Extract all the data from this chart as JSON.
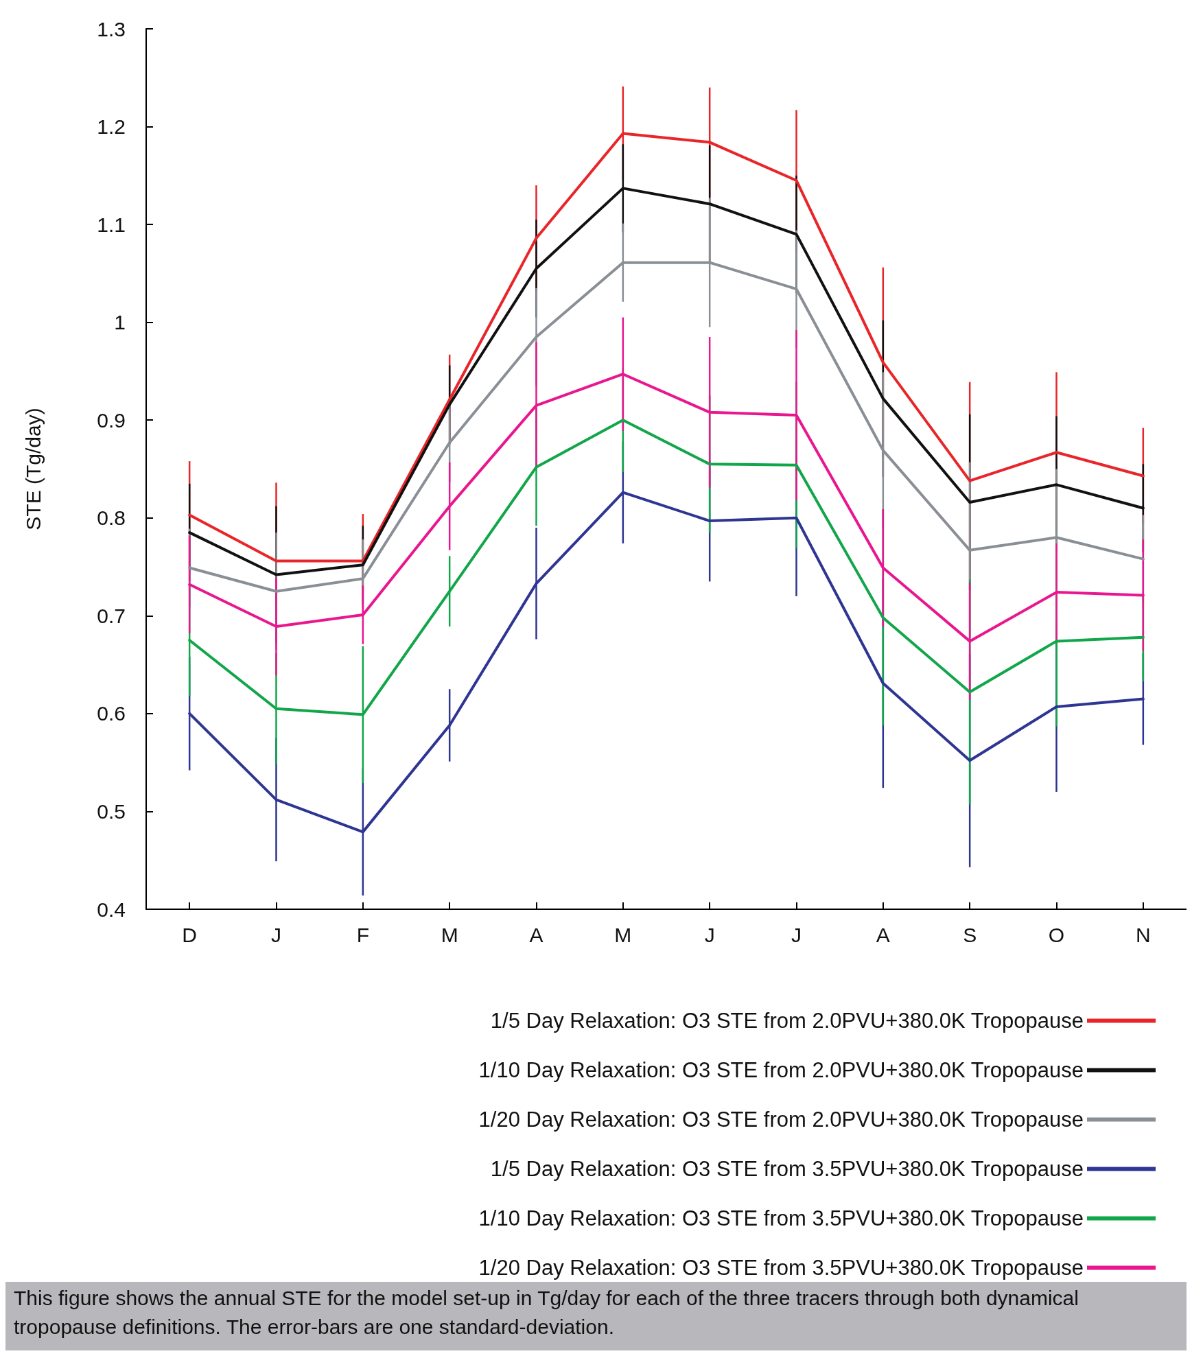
{
  "chart_data": {
    "type": "line",
    "ylabel": "STE (Tg/day)",
    "categories": [
      "D",
      "J",
      "F",
      "M",
      "A",
      "M",
      "J",
      "J",
      "A",
      "S",
      "O",
      "N"
    ],
    "ylim": [
      0.4,
      1.3
    ],
    "yticks": [
      0.4,
      0.5,
      0.6,
      0.7,
      0.8,
      0.9,
      1,
      1.1,
      1.2,
      1.3
    ],
    "grid": false,
    "legend": "bottom right",
    "marker": "none",
    "line_style": "solid",
    "series": [
      {
        "name": "1/5 Day Relaxation: O3 STE from 2.0PVU+380.0K Tropopause",
        "color": "#e8262a",
        "values": [
          0.803,
          0.756,
          0.756,
          0.921,
          1.086,
          1.193,
          1.184,
          1.145,
          0.959,
          0.838,
          0.867,
          0.843
        ],
        "errors": [
          0.055,
          0.08,
          0.048,
          0.046,
          0.054,
          0.048,
          0.056,
          0.072,
          0.097,
          0.101,
          0.082,
          0.049
        ]
      },
      {
        "name": "1/10 Day Relaxation: O3 STE from 2.0PVU+380.0K Tropopause",
        "color": "#111111",
        "values": [
          0.785,
          0.742,
          0.752,
          0.916,
          1.055,
          1.137,
          1.121,
          1.09,
          0.922,
          0.816,
          0.834,
          0.81
        ],
        "errors": [
          0.05,
          0.07,
          0.04,
          0.04,
          0.05,
          0.045,
          0.06,
          0.06,
          0.08,
          0.09,
          0.07,
          0.045
        ]
      },
      {
        "name": "1/20 Day Relaxation: O3 STE from 2.0PVU+380.0K Tropopause",
        "color": "#8a8f96",
        "values": [
          0.749,
          0.725,
          0.738,
          0.877,
          0.985,
          1.061,
          1.061,
          1.034,
          0.869,
          0.767,
          0.78,
          0.758
        ],
        "errors": [
          0.04,
          0.06,
          0.04,
          0.04,
          0.05,
          0.04,
          0.066,
          0.06,
          0.08,
          0.09,
          0.07,
          0.045
        ]
      },
      {
        "name": "1/5 Day Relaxation: O3 STE from 3.5PVU+380.0K Tropopause",
        "color": "#2e3592",
        "values": [
          0.6,
          0.512,
          0.479,
          0.588,
          0.733,
          0.826,
          0.797,
          0.8,
          0.631,
          0.552,
          0.607,
          0.615
        ],
        "errors": [
          0.058,
          0.063,
          0.065,
          0.037,
          0.057,
          0.052,
          0.062,
          0.08,
          0.107,
          0.109,
          0.087,
          0.047
        ]
      },
      {
        "name": "1/10 Day Relaxation: O3 STE from 3.5PVU+380.0K Tropopause",
        "color": "#12a64a",
        "values": [
          0.675,
          0.605,
          0.599,
          0.725,
          0.852,
          0.9,
          0.855,
          0.854,
          0.698,
          0.622,
          0.674,
          0.678
        ],
        "errors": [
          0.057,
          0.057,
          0.07,
          0.036,
          0.06,
          0.053,
          0.07,
          0.085,
          0.11,
          0.115,
          0.087,
          0.045
        ]
      },
      {
        "name": "1/20 Day Relaxation: O3 STE from 3.5PVU+380.0K Tropopause",
        "color": "#e9178f",
        "values": [
          0.732,
          0.689,
          0.701,
          0.812,
          0.915,
          0.947,
          0.908,
          0.905,
          0.749,
          0.674,
          0.724,
          0.721
        ],
        "errors": [
          0.05,
          0.05,
          0.03,
          0.045,
          0.065,
          0.058,
          0.077,
          0.087,
          0.06,
          0.06,
          0.05,
          0.057
        ]
      }
    ],
    "annotations": [
      "This figure shows the annual STE for the model set-up in Tg/day for each of the three tracers through both dynamical tropopause definitions. The error-bars are one standard-deviation."
    ]
  }
}
